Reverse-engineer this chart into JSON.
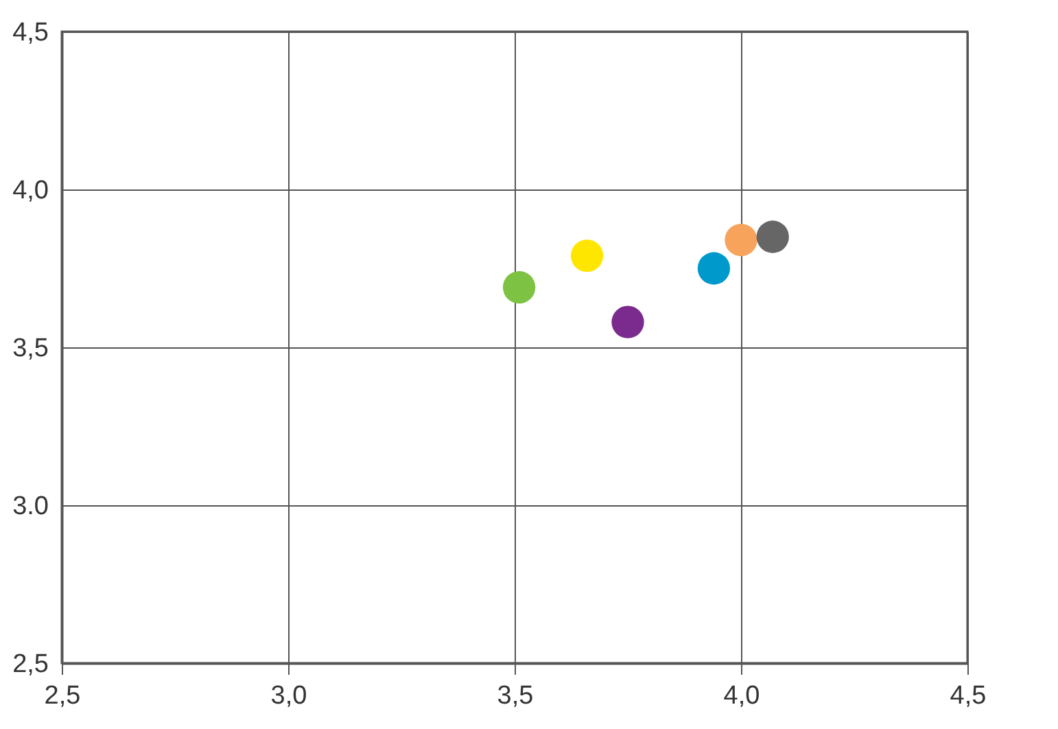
{
  "chart_data": {
    "type": "scatter",
    "x": [
      3.51,
      3.66,
      3.75,
      3.94,
      4.0,
      4.07
    ],
    "values": [
      3.69,
      3.79,
      3.58,
      3.75,
      3.84,
      3.85
    ],
    "colors": [
      "#7dc242",
      "#ffe600",
      "#7b2a8e",
      "#0099cc",
      "#f7a35c",
      "#666666"
    ],
    "xlim": [
      2.5,
      4.5
    ],
    "xticks": [
      {
        "value": 2.5,
        "label": "2,5"
      },
      {
        "value": 3.0,
        "label": "3,0"
      },
      {
        "value": 3.5,
        "label": "3,5"
      },
      {
        "value": 4.0,
        "label": "4,0"
      },
      {
        "value": 4.5,
        "label": "4,5"
      }
    ],
    "ylim": [
      2.5,
      4.5
    ],
    "yticks": [
      {
        "value": 2.5,
        "label": "2,5"
      },
      {
        "value": 3.0,
        "label": "3.0"
      },
      {
        "value": 3.5,
        "label": "3,5"
      },
      {
        "value": 4.0,
        "label": "4,0"
      },
      {
        "value": 4.5,
        "label": "4,5"
      }
    ],
    "grid": true,
    "marker": "circle"
  }
}
